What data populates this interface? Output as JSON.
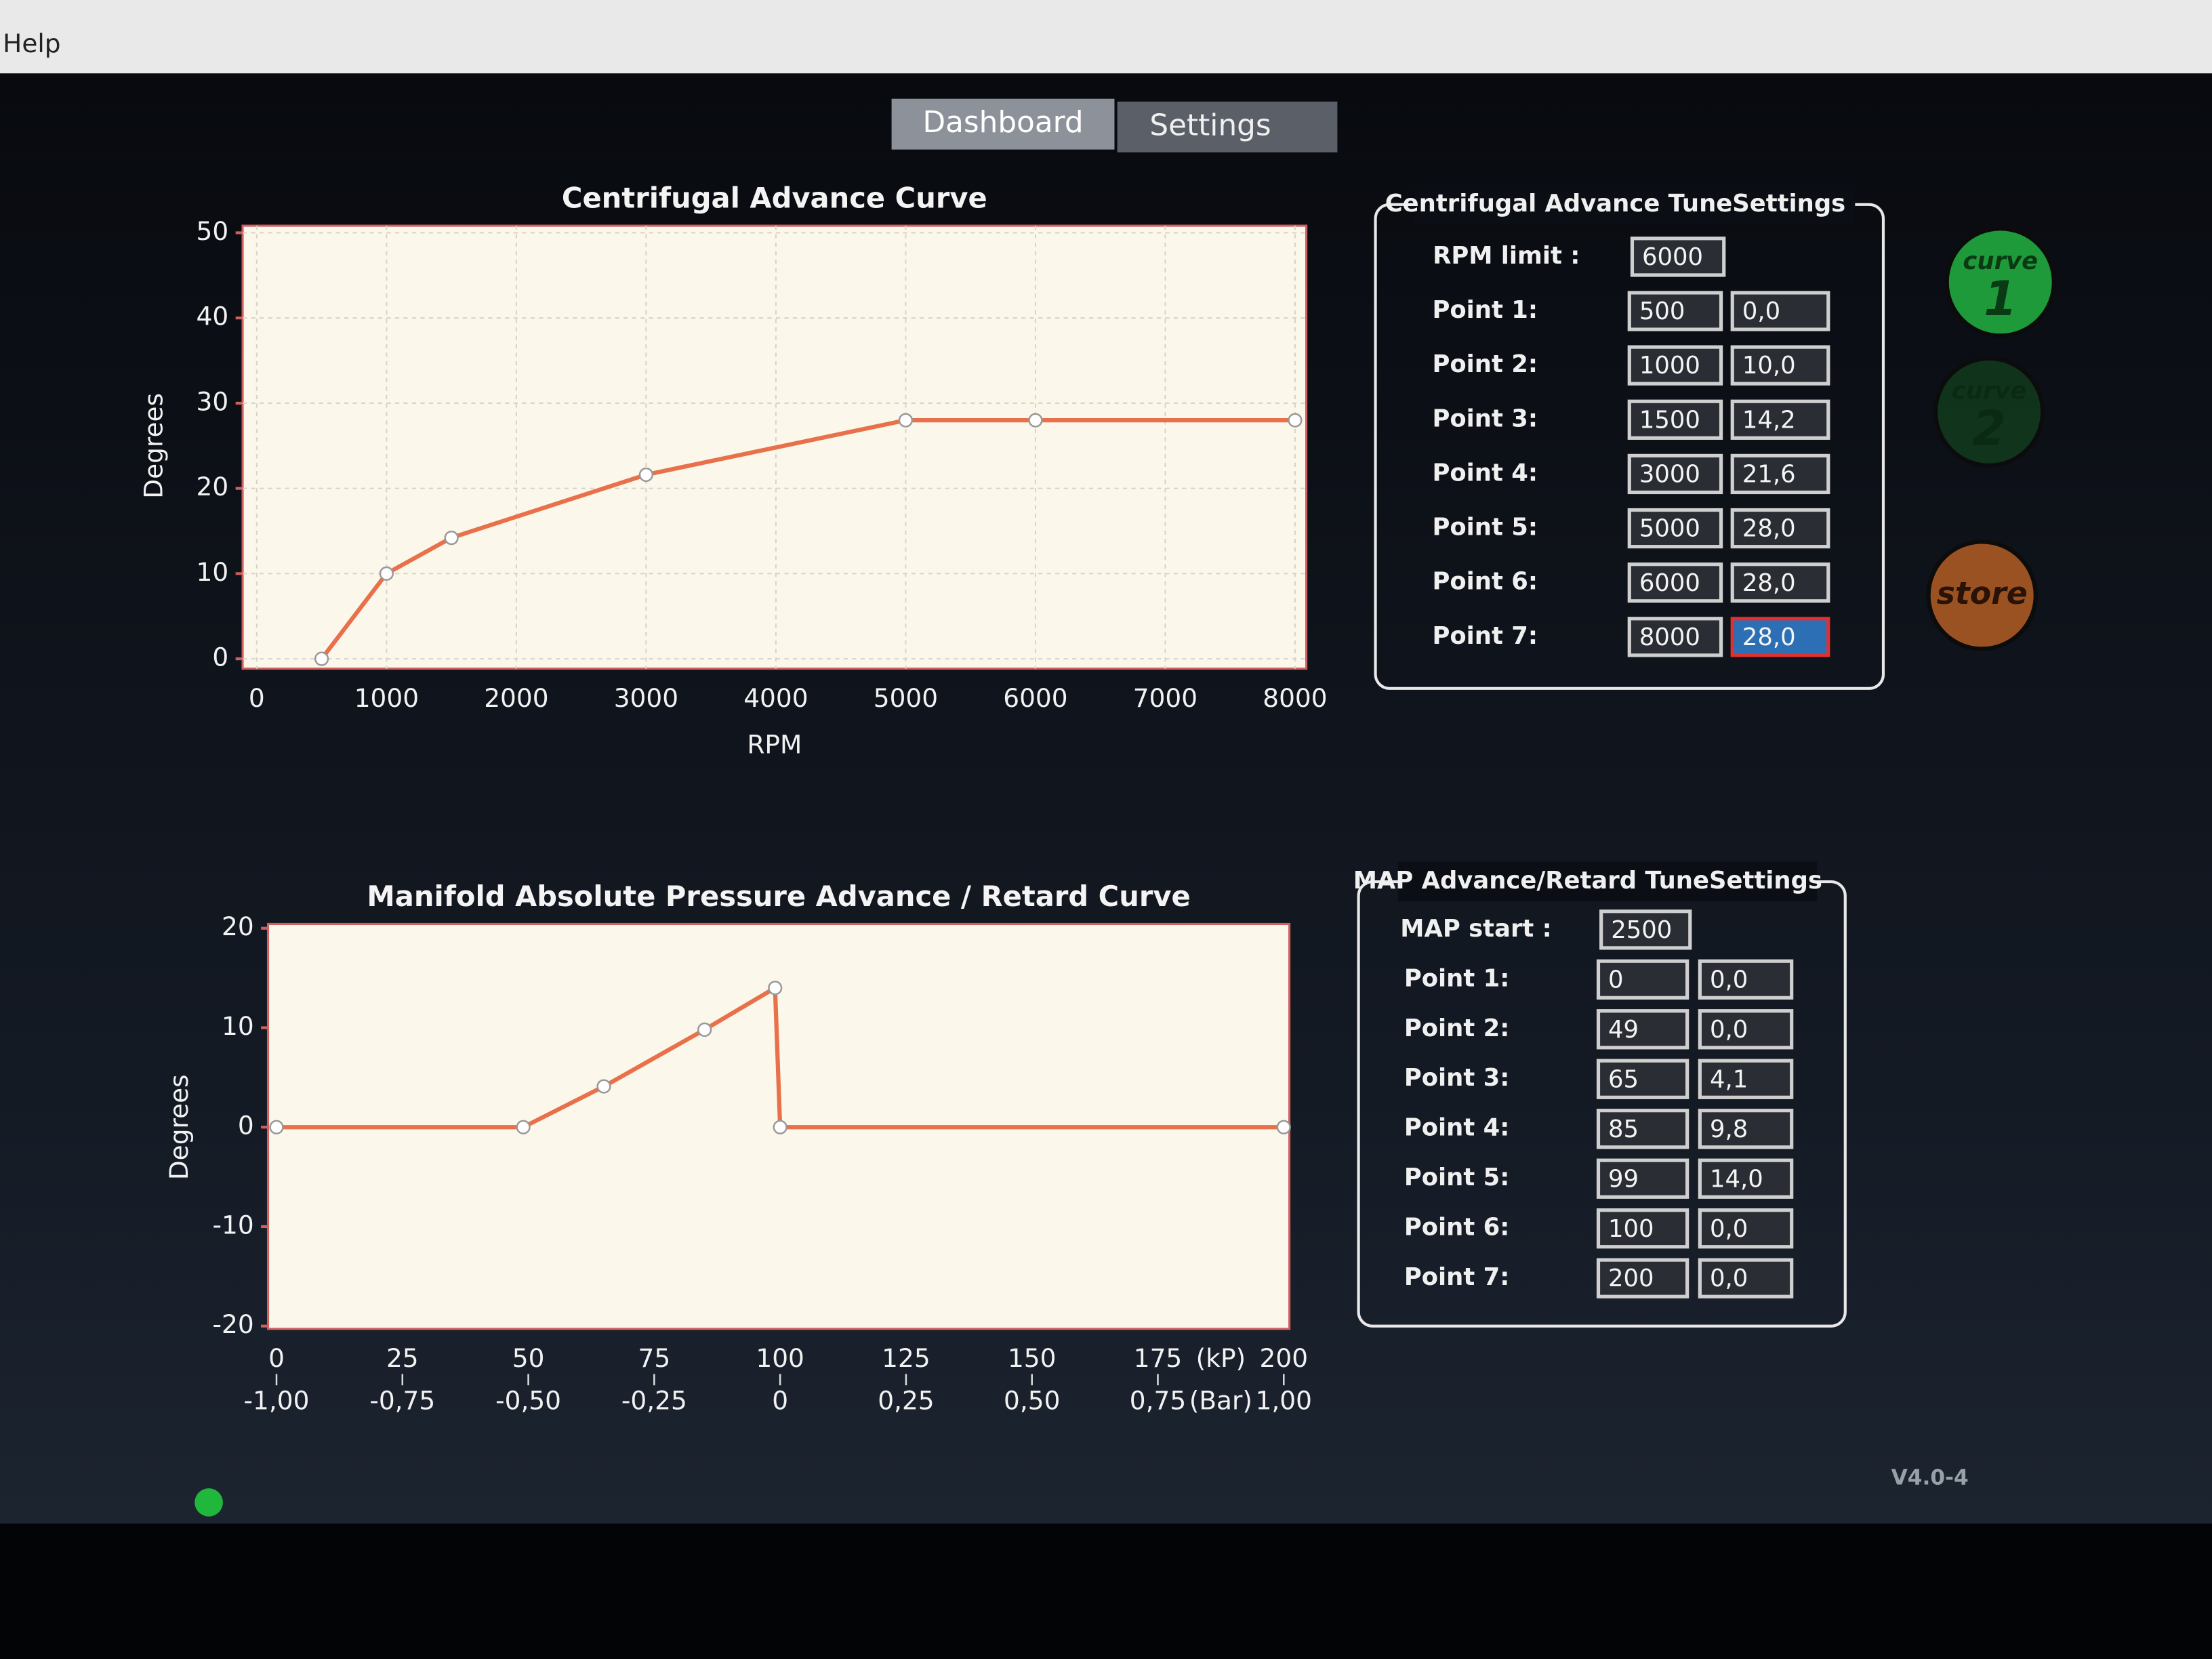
{
  "menu": [
    "Help"
  ],
  "tabs": [
    "Dashboard",
    "Settings"
  ],
  "chart_data": [
    {
      "type": "line",
      "title": "Centrifugal Advance Curve",
      "xlabel": "RPM",
      "ylabel": "Degrees",
      "x": [
        500,
        1000,
        1500,
        3000,
        5000,
        6000,
        8000
      ],
      "values": [
        0,
        10,
        14.2,
        21.6,
        28,
        28,
        28
      ],
      "color": "#e8704a",
      "xlim": [
        0,
        8000
      ],
      "xticks": [
        0,
        1000,
        2000,
        3000,
        4000,
        5000,
        6000,
        7000,
        8000
      ],
      "ylim": [
        0,
        50
      ],
      "yticks": [
        0,
        10,
        20,
        30,
        40,
        50
      ],
      "grid": true
    },
    {
      "type": "line",
      "title": "Manifold Absolute Pressure Advance / Retard Curve",
      "ylabel": "Degrees",
      "x_unit": "(kP)",
      "x2_unit": "(Bar)",
      "x": [
        0,
        49,
        65,
        85,
        99,
        100,
        200
      ],
      "values": [
        0,
        0,
        4.1,
        9.8,
        14,
        0,
        0
      ],
      "color": "#e8704a",
      "xlim": [
        0,
        200
      ],
      "xticks": [
        0,
        25,
        50,
        75,
        100,
        125,
        150,
        175,
        200
      ],
      "x2ticks": [
        {
          "value": 0,
          "label": "-1,00"
        },
        {
          "value": 25,
          "label": "-0,75"
        },
        {
          "value": 50,
          "label": "-0,50"
        },
        {
          "value": 75,
          "label": "-0,25"
        },
        {
          "value": 100,
          "label": "0"
        },
        {
          "value": 125,
          "label": "0,25"
        },
        {
          "value": 150,
          "label": "0,50"
        },
        {
          "value": 175,
          "label": "0,75"
        },
        {
          "value": 200,
          "label": "1,00"
        }
      ],
      "ylim": [
        -20,
        20
      ],
      "yticks": [
        -20,
        -10,
        0,
        10,
        20
      ],
      "grid": false
    }
  ],
  "centrifugal_settings": {
    "title": "Centrifugal Advance TuneSettings",
    "start": {
      "label": "RPM limit :",
      "value": "6000"
    },
    "points": [
      {
        "label": "Point 1:",
        "a": "500",
        "b": "0,0"
      },
      {
        "label": "Point 2:",
        "a": "1000",
        "b": "10,0"
      },
      {
        "label": "Point 3:",
        "a": "1500",
        "b": "14,2"
      },
      {
        "label": "Point 4:",
        "a": "3000",
        "b": "21,6"
      },
      {
        "label": "Point 5:",
        "a": "5000",
        "b": "28,0"
      },
      {
        "label": "Point 6:",
        "a": "6000",
        "b": "28,0"
      },
      {
        "label": "Point 7:",
        "a": "8000",
        "b": "28,0"
      }
    ]
  },
  "map_settings": {
    "title": "MAP Advance/Retard TuneSettings",
    "start": {
      "label": "MAP start :",
      "value": "2500"
    },
    "points": [
      {
        "label": "Point 1:",
        "a": "0",
        "b": "0,0"
      },
      {
        "label": "Point 2:",
        "a": "49",
        "b": "0,0"
      },
      {
        "label": "Point 3:",
        "a": "65",
        "b": "4,1"
      },
      {
        "label": "Point 4:",
        "a": "85",
        "b": "9,8"
      },
      {
        "label": "Point 5:",
        "a": "99",
        "b": "14,0"
      },
      {
        "label": "Point 6:",
        "a": "100",
        "b": "0,0"
      },
      {
        "label": "Point 7:",
        "a": "200",
        "b": "0,0"
      }
    ]
  },
  "buttons": [
    {
      "label": "curve",
      "number": "1"
    },
    {
      "label": "curve",
      "number": "2"
    },
    {
      "label": "store"
    }
  ],
  "version": "V4.0-4"
}
